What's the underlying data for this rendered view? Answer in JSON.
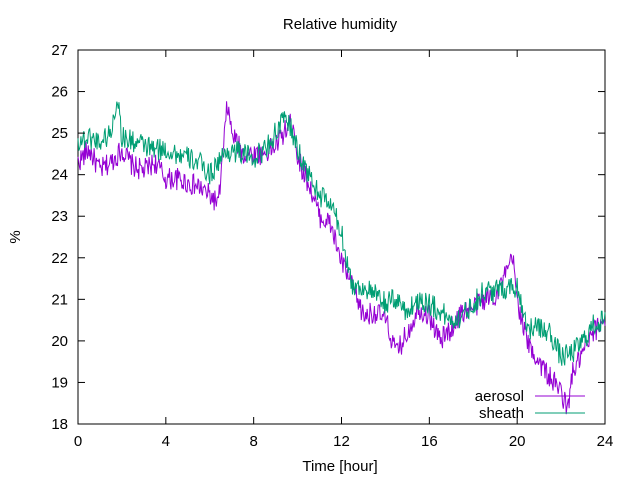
{
  "chart_data": {
    "type": "line",
    "title": "Relative humidity",
    "xlabel": "Time [hour]",
    "ylabel": "%",
    "xlim": [
      0,
      24
    ],
    "ylim": [
      18,
      27
    ],
    "xticks": [
      0,
      4,
      8,
      12,
      16,
      20,
      24
    ],
    "yticks": [
      18,
      19,
      20,
      21,
      22,
      23,
      24,
      25,
      26,
      27
    ],
    "grid": false,
    "legend": "bottom-right",
    "series": [
      {
        "name": "aerosol",
        "color": "#9400d3",
        "x": [
          0,
          0.5,
          1,
          1.5,
          2,
          2.5,
          3,
          3.5,
          4,
          4.5,
          5,
          5.5,
          6,
          6.4,
          6.6,
          6.8,
          7,
          7.5,
          8,
          8.5,
          9,
          9.5,
          9.8,
          10,
          10.5,
          11,
          11.5,
          12,
          12.5,
          13,
          13.5,
          14,
          14.5,
          15,
          15.5,
          16,
          16.5,
          17,
          17.5,
          18,
          18.5,
          19,
          19.5,
          19.8,
          20,
          20.5,
          21,
          21.5,
          22,
          22.3,
          22.5,
          23,
          23.5,
          24
        ],
        "y": [
          24.3,
          24.6,
          24.1,
          24.3,
          24.6,
          24.2,
          24.1,
          24.3,
          23.9,
          23.9,
          23.8,
          23.7,
          23.5,
          23.3,
          24.5,
          25.7,
          25.0,
          24.5,
          24.5,
          24.5,
          24.7,
          25.1,
          25.3,
          24.4,
          23.8,
          23.0,
          22.8,
          21.9,
          21.3,
          20.6,
          20.7,
          20.5,
          19.7,
          20.2,
          20.8,
          20.6,
          20.0,
          20.3,
          20.7,
          20.8,
          21.0,
          21.1,
          21.6,
          22.0,
          21.0,
          19.9,
          19.5,
          19.1,
          18.8,
          18.3,
          19.2,
          19.7,
          20.2,
          20.6
        ]
      },
      {
        "name": "sheath",
        "color": "#009e73",
        "x": [
          0,
          0.5,
          1,
          1.5,
          1.8,
          2,
          2.5,
          3,
          3.5,
          4,
          4.5,
          5,
          5.5,
          6,
          6.5,
          7,
          7.5,
          8,
          8.5,
          9,
          9.5,
          10,
          10.5,
          11,
          11.5,
          12,
          12.5,
          13,
          13.5,
          14,
          14.5,
          15,
          15.5,
          16,
          16.5,
          17,
          17.5,
          18,
          18.5,
          19,
          19.5,
          20,
          20.5,
          21,
          21.5,
          22,
          22.5,
          23,
          23.5,
          24
        ],
        "y": [
          24.8,
          24.9,
          24.8,
          25.0,
          25.9,
          24.9,
          24.8,
          24.7,
          24.6,
          24.6,
          24.5,
          24.4,
          24.3,
          24.0,
          24.4,
          24.6,
          24.5,
          24.4,
          24.6,
          25.0,
          25.4,
          24.6,
          24.0,
          23.5,
          23.3,
          22.6,
          21.3,
          21.3,
          21.1,
          20.9,
          21.0,
          20.7,
          21.0,
          20.9,
          20.7,
          20.5,
          20.6,
          20.9,
          21.2,
          21.2,
          21.3,
          21.3,
          20.3,
          20.3,
          20.2,
          19.6,
          19.7,
          20.0,
          20.4,
          20.5
        ]
      }
    ]
  }
}
